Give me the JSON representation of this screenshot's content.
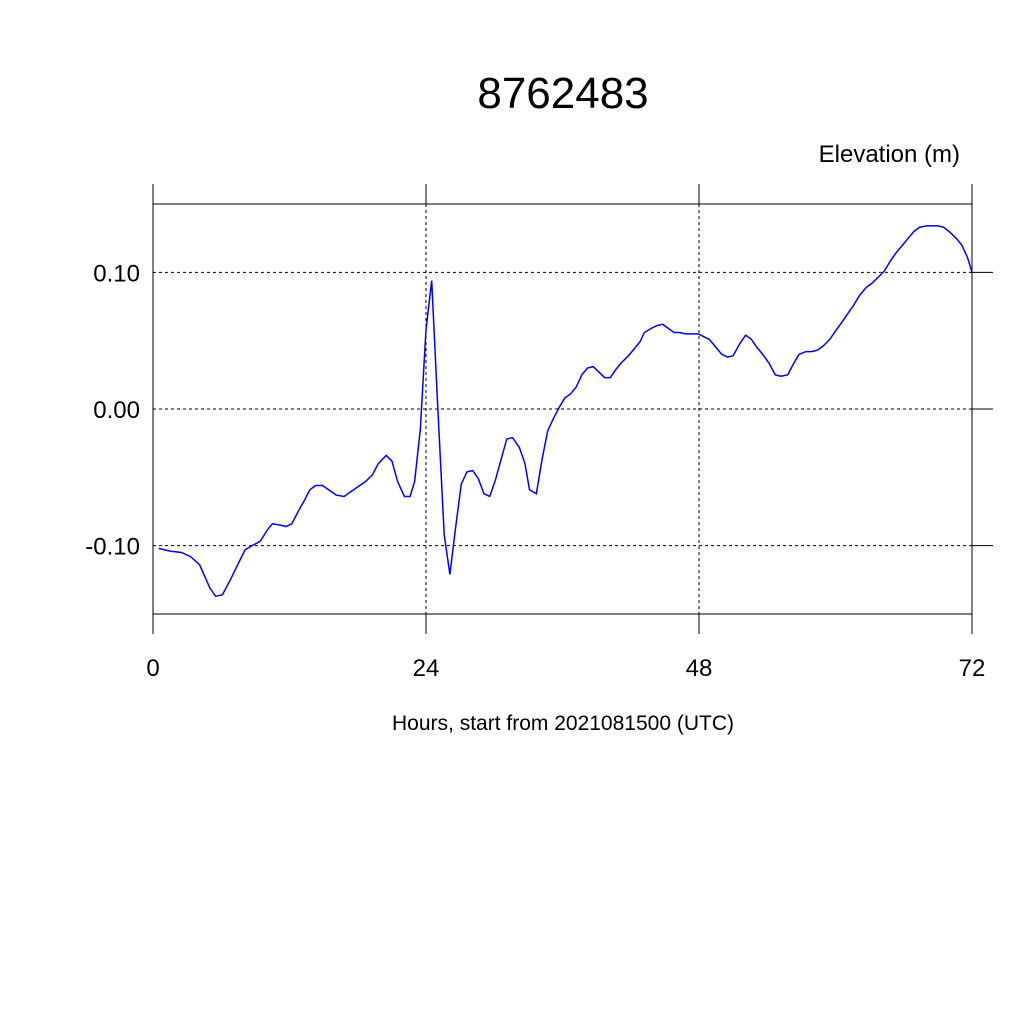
{
  "chart_data": {
    "type": "line",
    "title": "8762483",
    "ylabel": "Elevation (m)",
    "xlabel": "Hours, start from 2021081500 (UTC)",
    "xlim": [
      0,
      72
    ],
    "xticks": [
      0,
      24,
      48,
      72
    ],
    "ylim": [
      -0.15,
      0.15
    ],
    "yticks": [
      {
        "value": -0.1,
        "label": "-0.10"
      },
      {
        "value": 0,
        "label": "0.00"
      },
      {
        "value": 0.1,
        "label": "0.10"
      }
    ],
    "grid": true,
    "series": [
      {
        "color": "#0000ff",
        "x": [
          0.5,
          1.5,
          2.5,
          3.3,
          4.1,
          5.0,
          5.5,
          6.1,
          6.8,
          7.5,
          8.1,
          8.7,
          9.4,
          10.1,
          10.5,
          11.2,
          11.7,
          12.2,
          12.7,
          13.3,
          13.8,
          14.3,
          14.9,
          15.6,
          16.1,
          16.8,
          17.3,
          18.0,
          18.7,
          19.3,
          19.8,
          20.5,
          21.0,
          21.5,
          22.1,
          22.6,
          23.0,
          23.5,
          24.0,
          24.5,
          25.0,
          25.6,
          26.1,
          26.6,
          27.1,
          27.6,
          28.1,
          28.6,
          29.1,
          29.6,
          30.1,
          30.7,
          31.1,
          31.6,
          32.2,
          32.7,
          33.1,
          33.7,
          34.2,
          34.7,
          35.2,
          35.7,
          36.2,
          36.7,
          37.2,
          37.7,
          38.2,
          38.7,
          39.2,
          39.7,
          40.2,
          40.7,
          41.2,
          41.8,
          42.3,
          42.8,
          43.2,
          43.8,
          44.3,
          44.8,
          45.3,
          45.8,
          46.3,
          46.8,
          47.4,
          47.9,
          48.4,
          48.9,
          49.5,
          50.0,
          50.5,
          51.0,
          51.6,
          52.1,
          52.6,
          53.1,
          53.6,
          54.2,
          54.7,
          55.2,
          55.8,
          56.3,
          56.8,
          57.4,
          57.9,
          58.4,
          58.9,
          59.5,
          60.0,
          60.6,
          61.1,
          61.6,
          62.1,
          62.7,
          63.2,
          63.7,
          64.3,
          64.8,
          65.3,
          65.8,
          66.4,
          66.9,
          67.4,
          68.0,
          68.5,
          69.0,
          69.5,
          70.1,
          70.6,
          71.1,
          71.6,
          72.0
        ],
        "values": [
          -0.102,
          -0.104,
          -0.105,
          -0.108,
          -0.114,
          -0.131,
          -0.137,
          -0.136,
          -0.125,
          -0.113,
          -0.103,
          -0.1,
          -0.097,
          -0.088,
          -0.084,
          -0.085,
          -0.086,
          -0.084,
          -0.076,
          -0.067,
          -0.059,
          -0.056,
          -0.056,
          -0.06,
          -0.063,
          -0.064,
          -0.061,
          -0.057,
          -0.053,
          -0.048,
          -0.04,
          -0.034,
          -0.038,
          -0.053,
          -0.064,
          -0.064,
          -0.053,
          -0.015,
          0.058,
          0.094,
          0.007,
          -0.092,
          -0.121,
          -0.087,
          -0.055,
          -0.046,
          -0.045,
          -0.051,
          -0.062,
          -0.064,
          -0.052,
          -0.034,
          -0.022,
          -0.021,
          -0.028,
          -0.04,
          -0.059,
          -0.062,
          -0.037,
          -0.016,
          -0.007,
          0.001,
          0.008,
          0.011,
          0.016,
          0.025,
          0.03,
          0.031,
          0.027,
          0.023,
          0.023,
          0.029,
          0.034,
          0.039,
          0.044,
          0.049,
          0.056,
          0.059,
          0.061,
          0.062,
          0.059,
          0.056,
          0.056,
          0.055,
          0.055,
          0.055,
          0.053,
          0.051,
          0.045,
          0.04,
          0.038,
          0.039,
          0.048,
          0.054,
          0.051,
          0.045,
          0.04,
          0.033,
          0.025,
          0.024,
          0.025,
          0.033,
          0.04,
          0.042,
          0.042,
          0.043,
          0.046,
          0.051,
          0.057,
          0.064,
          0.07,
          0.076,
          0.083,
          0.089,
          0.092,
          0.096,
          0.101,
          0.108,
          0.114,
          0.119,
          0.125,
          0.13,
          0.133,
          0.134,
          0.134,
          0.134,
          0.133,
          0.129,
          0.125,
          0.12,
          0.111,
          0.1
        ]
      }
    ]
  }
}
